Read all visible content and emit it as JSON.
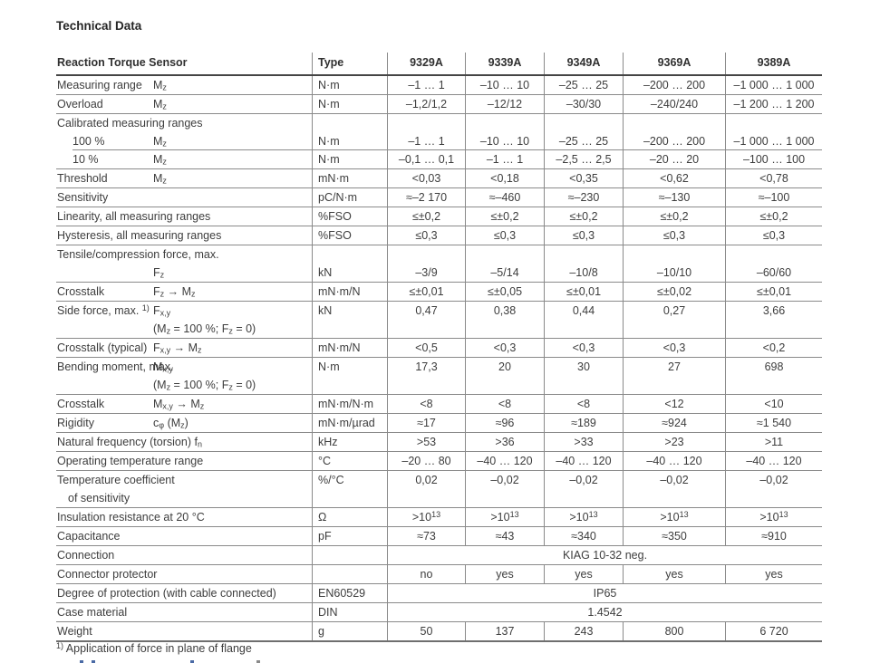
{
  "page": {
    "title": "Technical Data",
    "footnote": "^1)^ Application of force in plane of flange"
  },
  "table": {
    "header": {
      "param": "Reaction Torque Sensor",
      "type": "Type",
      "models": [
        "9329A",
        "9339A",
        "9349A",
        "9369A",
        "9389A"
      ]
    },
    "rows": [
      {
        "kind": "data",
        "label": "Measuring range",
        "symbol": "M~z~",
        "unit": "N·m",
        "values": [
          "–1 … 1",
          "–10 … 10",
          "–25 … 25",
          "–200 … 200",
          "–1 000 … 1 000"
        ]
      },
      {
        "kind": "data",
        "label": "Overload",
        "symbol": "M~z~",
        "unit": "N·m",
        "values": [
          "–1,2/1,2",
          "–12/12",
          "–30/30",
          "–240/240",
          "–1 200 … 1 200"
        ]
      },
      {
        "kind": "group",
        "label": "Calibrated measuring ranges"
      },
      {
        "kind": "data",
        "indent": true,
        "border": "indent",
        "label": "100 %",
        "symbol": "M~z~",
        "unit": "N·m",
        "values": [
          "–1 … 1",
          "–10 … 10",
          "–25 … 25",
          "–200 … 200",
          "–1 000 … 1 000"
        ]
      },
      {
        "kind": "data",
        "indent": true,
        "label": "10 %",
        "symbol": "M~z~",
        "unit": "N·m",
        "values": [
          "–0,1 … 0,1",
          "–1 … 1",
          "–2,5 … 2,5",
          "–20 … 20",
          "–100 … 100"
        ]
      },
      {
        "kind": "data",
        "label": "Threshold",
        "symbol": "M~z~",
        "unit": "mN·m",
        "values": [
          "<0,03",
          "<0,18",
          "<0,35",
          "<0,62",
          "<0,78"
        ]
      },
      {
        "kind": "data",
        "label": "Sensitivity",
        "unit": "pC/N·m",
        "values": [
          "≈–2 170",
          "≈–460",
          "≈–230",
          "≈–130",
          "≈–100"
        ]
      },
      {
        "kind": "data",
        "label": "Linearity, all measuring ranges",
        "unit": "%FSO",
        "values": [
          "≤±0,2",
          "≤±0,2",
          "≤±0,2",
          "≤±0,2",
          "≤±0,2"
        ]
      },
      {
        "kind": "data",
        "label": "Hysteresis, all measuring ranges",
        "unit": "%FSO",
        "values": [
          "≤0,3",
          "≤0,3",
          "≤0,3",
          "≤0,3",
          "≤0,3"
        ]
      },
      {
        "kind": "group",
        "label": "Tensile/compression force, max."
      },
      {
        "kind": "data",
        "label": "",
        "symbol": "F~z~",
        "unit": "kN",
        "values": [
          "–3/9",
          "–5/14",
          "–10/8",
          "–10/10",
          "–60/60"
        ]
      },
      {
        "kind": "data",
        "label": "Crosstalk",
        "symbol": "F~z~ → M~z~",
        "unit": "mN·m/N",
        "values": [
          "≤±0,01",
          "≤±0,05",
          "≤±0,01",
          "≤±0,02",
          "≤±0,01"
        ]
      },
      {
        "kind": "data",
        "label": "Side force, max. ^1)^",
        "symbol": "F~x,y~",
        "symbol2": "(M~z~ = 100 %; F~z~ = 0)",
        "unit": "kN",
        "values": [
          "0,47",
          "0,38",
          "0,44",
          "0,27",
          "3,66"
        ]
      },
      {
        "kind": "data",
        "label": "Crosstalk (typical)",
        "symbol": "F~x,y~ → M~z~",
        "unit": "mN·m/N",
        "values": [
          "<0,5",
          "<0,3",
          "<0,3",
          "<0,3",
          "<0,2"
        ]
      },
      {
        "kind": "data",
        "label": "Bending moment, max.",
        "symbol": "M~x,y~",
        "symbol2": "(M~z~ = 100 %; F~z~ = 0)",
        "unit": "N·m",
        "values": [
          "17,3",
          "20",
          "30",
          "27",
          "698"
        ]
      },
      {
        "kind": "data",
        "label": "Crosstalk",
        "symbol": "M~x,y~ → M~z~",
        "unit": "mN·m/N·m",
        "values": [
          "<8",
          "<8",
          "<8",
          "<12",
          "<10"
        ]
      },
      {
        "kind": "data",
        "label": "Rigidity",
        "symbol": "c~φ~ (M~z~)",
        "unit": "mN·m/µrad",
        "values": [
          "≈17",
          "≈96",
          "≈189",
          "≈924",
          "≈1 540"
        ]
      },
      {
        "kind": "data",
        "label": "Natural frequency (torsion) f~n~",
        "unit": "kHz",
        "values": [
          ">53",
          ">36",
          ">33",
          ">23",
          ">11"
        ]
      },
      {
        "kind": "data",
        "label": "Operating temperature range",
        "unit": "°C",
        "values": [
          "–20 … 80",
          "–40 … 120",
          "–40 … 120",
          "–40 … 120",
          "–40 … 120"
        ]
      },
      {
        "kind": "data",
        "label": "Temperature coefficient",
        "label2": "of sensitivity",
        "unit": "%/°C",
        "values": [
          "0,02",
          "–0,02",
          "–0,02",
          "–0,02",
          "–0,02"
        ]
      },
      {
        "kind": "data",
        "label": "Insulation resistance at 20 °C",
        "unit": "Ω",
        "values": [
          ">10^13^",
          ">10^13^",
          ">10^13^",
          ">10^13^",
          ">10^13^"
        ]
      },
      {
        "kind": "data",
        "label": "Capacitance",
        "unit": "pF",
        "values": [
          "≈73",
          "≈43",
          "≈340",
          "≈350",
          "≈910"
        ]
      },
      {
        "kind": "span",
        "label": "Connection",
        "unit": "",
        "span": "KIAG 10-32 neg."
      },
      {
        "kind": "data",
        "label": "Connector protector",
        "unit": "",
        "values": [
          "no",
          "yes",
          "yes",
          "yes",
          "yes"
        ]
      },
      {
        "kind": "span",
        "label": "Degree of protection (with cable connected)",
        "unit": "EN60529",
        "span": "IP65"
      },
      {
        "kind": "span",
        "label": "Case material",
        "unit": "DIN",
        "span": "1.4542"
      },
      {
        "kind": "data",
        "thick": true,
        "label": "Weight",
        "unit": "g",
        "values": [
          "50",
          "137",
          "243",
          "800",
          "6 720"
        ]
      }
    ]
  }
}
